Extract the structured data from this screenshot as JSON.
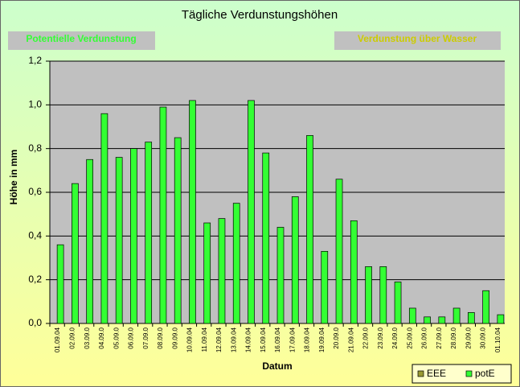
{
  "chart_data": {
    "type": "bar",
    "title": "Tägliche Verdunstungshöhen",
    "buttons": [
      "Potentielle Verdunstung",
      "Verdunstung über Wasser"
    ],
    "ylabel": "Höhe in mm",
    "xlabel": "Datum",
    "categories": [
      "01.09.04",
      "02.09.0",
      "03.09.0",
      "04.09.0",
      "05.09.0",
      "06.09.0",
      "07.09.0",
      "08.09.0",
      "09.09.0",
      "10.09.04",
      "11.09.04",
      "12.09.04",
      "13.09.04",
      "14.09.04",
      "15.09.04",
      "16.09.04",
      "17.09.04",
      "18.09.04",
      "19.09.04",
      "20.09.0",
      "21.09.04",
      "22.09.0",
      "23.09.0",
      "24.09.0",
      "25.09.0",
      "26.09.0",
      "27.09.0",
      "28.09.0",
      "29.09.0",
      "30.09.0",
      "01.10.04"
    ],
    "series": [
      {
        "name": "EEE",
        "color": "#999933",
        "values": [
          null,
          null,
          null,
          null,
          null,
          null,
          null,
          null,
          null,
          null,
          null,
          null,
          null,
          null,
          null,
          null,
          null,
          null,
          null,
          null,
          null,
          null,
          null,
          null,
          null,
          null,
          null,
          null,
          null,
          null,
          null
        ]
      },
      {
        "name": "potE",
        "color": "#33ff33",
        "values": [
          0.36,
          0.64,
          0.75,
          0.96,
          0.76,
          0.8,
          0.83,
          0.99,
          0.85,
          1.02,
          0.46,
          0.48,
          0.55,
          1.02,
          0.78,
          0.44,
          0.58,
          0.86,
          0.33,
          0.66,
          0.47,
          0.26,
          0.26,
          0.19,
          0.07,
          0.03,
          0.03,
          0.07,
          0.05,
          0.15,
          0.04
        ]
      }
    ],
    "ylim": [
      0,
      1.2
    ],
    "yticks": [
      {
        "value": 0,
        "label": "0,0"
      },
      {
        "value": 0.2,
        "label": "0,2"
      },
      {
        "value": 0.4,
        "label": "0,4"
      },
      {
        "value": 0.6,
        "label": "0,6"
      },
      {
        "value": 0.8,
        "label": "0,8"
      },
      {
        "value": 1.0,
        "label": "1,0"
      },
      {
        "value": 1.2,
        "label": "1,2"
      }
    ],
    "grid": true,
    "legend": "bottom-right"
  }
}
